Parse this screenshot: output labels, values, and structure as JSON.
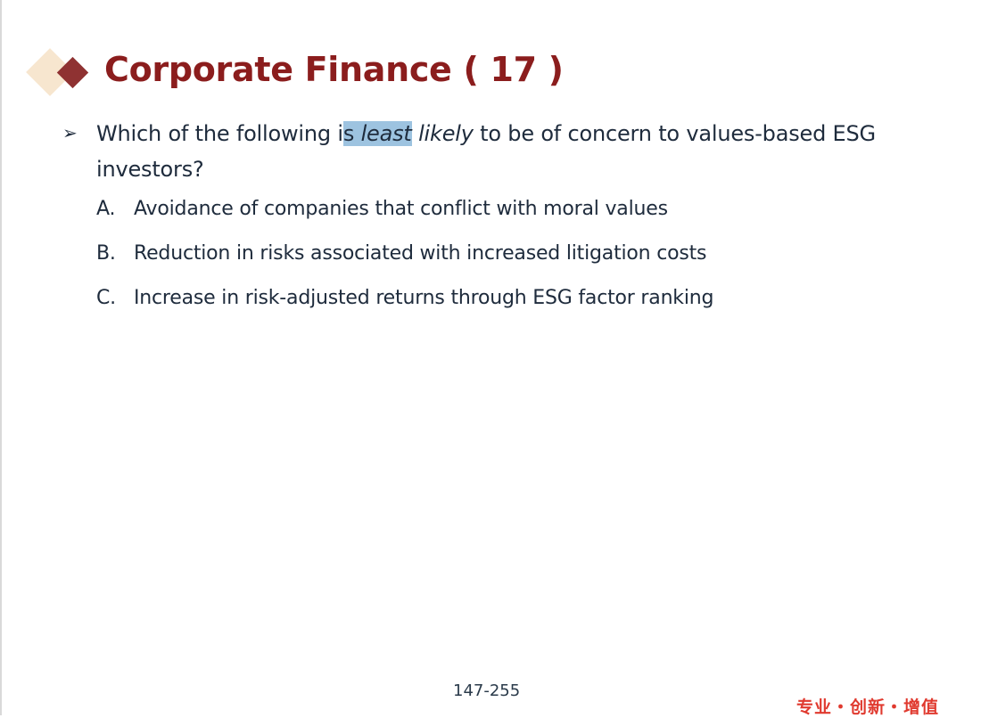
{
  "slide": {
    "title": "Corporate Finance ( 17 )",
    "question": {
      "pre": "Which of the following i",
      "highlighted_s": "s ",
      "highlighted_word": "least",
      "emph": "likely",
      "post": " to be of concern to values-based ESG investors?"
    },
    "options": [
      {
        "letter": "A.",
        "text": "Avoidance of companies that conflict with moral values"
      },
      {
        "letter": "B.",
        "text": "Reduction in risks associated with increased litigation costs"
      },
      {
        "letter": "C.",
        "text": "Increase in risk-adjusted returns through ESG factor ranking"
      }
    ],
    "page_number": "147-255",
    "slogan": "专业・创新・增值",
    "colors": {
      "title": "#8b1d1d",
      "highlight": "#9dc3e0",
      "slogan": "#e03a2f"
    }
  }
}
